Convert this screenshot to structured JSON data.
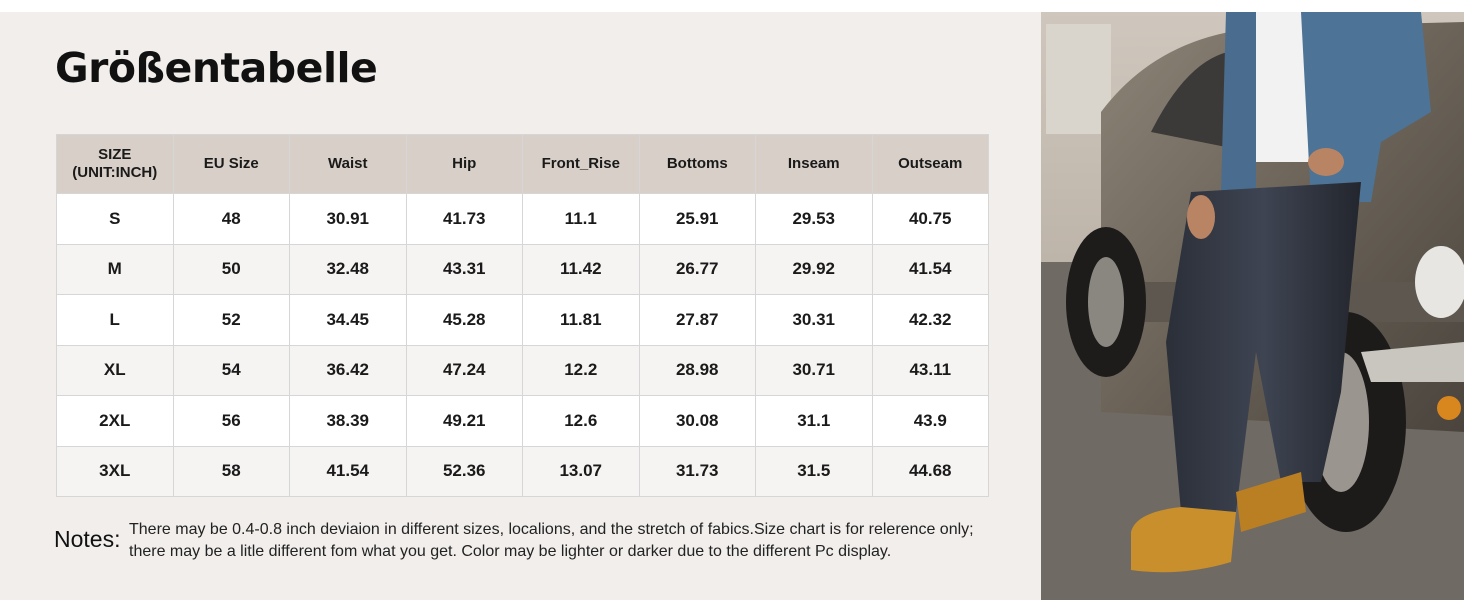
{
  "header": {
    "title": "Größentabelle"
  },
  "table": {
    "columns": [
      "SIZE\n(UNIT:INCH)",
      "EU Size",
      "Waist",
      "Hip",
      "Front_Rise",
      "Bottoms",
      "Inseam",
      "Outseam"
    ],
    "rows": [
      [
        "S",
        "48",
        "30.91",
        "41.73",
        "11.1",
        "25.91",
        "29.53",
        "40.75"
      ],
      [
        "M",
        "50",
        "32.48",
        "43.31",
        "11.42",
        "26.77",
        "29.92",
        "41.54"
      ],
      [
        "L",
        "52",
        "34.45",
        "45.28",
        "11.81",
        "27.87",
        "30.31",
        "42.32"
      ],
      [
        "XL",
        "54",
        "36.42",
        "47.24",
        "12.2",
        "28.98",
        "30.71",
        "43.11"
      ],
      [
        "2XL",
        "56",
        "38.39",
        "49.21",
        "12.6",
        "30.08",
        "31.1",
        "43.9"
      ],
      [
        "3XL",
        "58",
        "41.54",
        "52.36",
        "13.07",
        "31.73",
        "31.5",
        "44.68"
      ]
    ]
  },
  "notes": {
    "label": "Notes:",
    "lines": [
      "There may be 0.4-0.8 inch deviaion in different sizes, localions, and the stretch of fabics.Size chart is for relerence only;",
      "there may be a litle different fom what you get. Color may be lighter or darker due to the different Pc display."
    ]
  }
}
